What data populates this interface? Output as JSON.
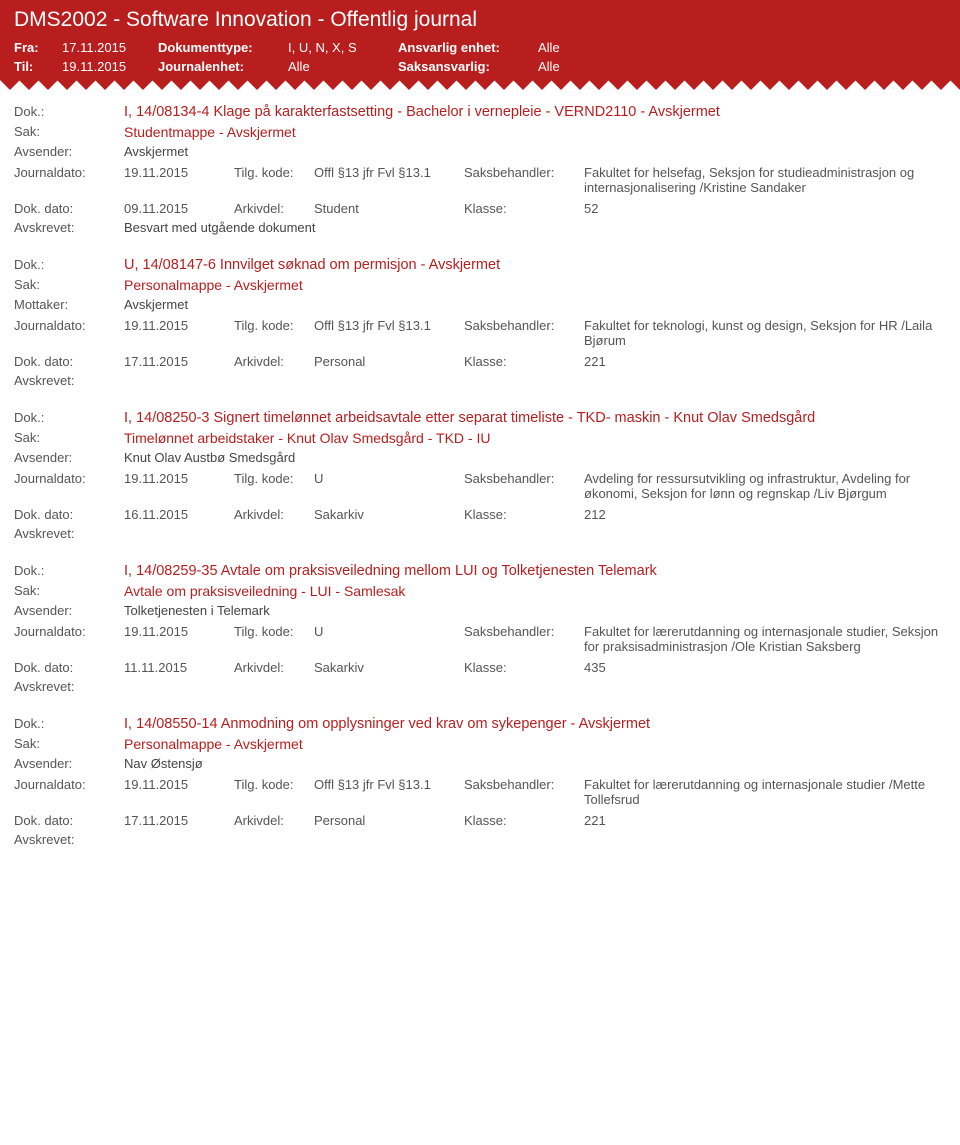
{
  "header": {
    "title": "DMS2002 - Software Innovation - Offentlig journal",
    "fra_label": "Fra:",
    "fra_value": "17.11.2015",
    "til_label": "Til:",
    "til_value": "19.11.2015",
    "doktype_label": "Dokumenttype:",
    "doktype_value": "I, U, N, X, S",
    "journalenhet_label": "Journalenhet:",
    "journalenhet_value": "Alle",
    "ansvarlig_label": "Ansvarlig enhet:",
    "ansvarlig_value": "Alle",
    "saksansvarlig_label": "Saksansvarlig:",
    "saksansvarlig_value": "Alle"
  },
  "labels": {
    "dok": "Dok.:",
    "sak": "Sak:",
    "avsender": "Avsender:",
    "mottaker": "Mottaker:",
    "journaldato": "Journaldato:",
    "tilgkode": "Tilg. kode:",
    "saksbehandler": "Saksbehandler:",
    "dokdato": "Dok. dato:",
    "arkivdel": "Arkivdel:",
    "klasse": "Klasse:",
    "avskrevet": "Avskrevet:"
  },
  "entries": [
    {
      "dok": "I, 14/08134-4 Klage på karakterfastsetting - Bachelor i vernepleie - VERND2110 - Avskjermet",
      "sak": "Studentmappe - Avskjermet",
      "party_label": "Avsender:",
      "party": "Avskjermet",
      "journaldato": "19.11.2015",
      "tilgkode": "Offl §13 jfr Fvl §13.1",
      "saksbehandler": "Fakultet for helsefag, Seksjon for studieadministrasjon og internasjonalisering /Kristine Sandaker",
      "dokdato": "09.11.2015",
      "arkivdel": "Student",
      "klasse": "52",
      "avskrevet": "Besvart med utgående dokument"
    },
    {
      "dok": "U, 14/08147-6 Innvilget søknad om permisjon - Avskjermet",
      "sak": "Personalmappe - Avskjermet",
      "party_label": "Mottaker:",
      "party": "Avskjermet",
      "journaldato": "19.11.2015",
      "tilgkode": "Offl §13 jfr Fvl §13.1",
      "saksbehandler": "Fakultet for teknologi, kunst og design, Seksjon for HR /Laila Bjørum",
      "dokdato": "17.11.2015",
      "arkivdel": "Personal",
      "klasse": "221",
      "avskrevet": ""
    },
    {
      "dok": "I, 14/08250-3 Signert timelønnet arbeidsavtale etter separat timeliste - TKD- maskin - Knut Olav Smedsgård",
      "sak": "Timelønnet arbeidstaker - Knut Olav Smedsgård - TKD - IU",
      "party_label": "Avsender:",
      "party": "Knut Olav Austbø Smedsgård",
      "journaldato": "19.11.2015",
      "tilgkode": "U",
      "saksbehandler": "Avdeling for ressursutvikling og infrastruktur, Avdeling for økonomi, Seksjon for lønn og regnskap /Liv Bjørgum",
      "dokdato": "16.11.2015",
      "arkivdel": "Sakarkiv",
      "klasse": "212",
      "avskrevet": ""
    },
    {
      "dok": "I, 14/08259-35 Avtale om praksisveiledning mellom LUI og Tolketjenesten Telemark",
      "sak": "Avtale om praksisveiledning - LUI - Samlesak",
      "party_label": "Avsender:",
      "party": "Tolketjenesten i Telemark",
      "journaldato": "19.11.2015",
      "tilgkode": "U",
      "saksbehandler": "Fakultet for lærerutdanning og internasjonale studier, Seksjon for praksisadministrasjon /Ole Kristian Saksberg",
      "dokdato": "11.11.2015",
      "arkivdel": "Sakarkiv",
      "klasse": "435",
      "avskrevet": ""
    },
    {
      "dok": "I, 14/08550-14 Anmodning om opplysninger ved krav om sykepenger - Avskjermet",
      "sak": "Personalmappe - Avskjermet",
      "party_label": "Avsender:",
      "party": "Nav Østensjø",
      "journaldato": "19.11.2015",
      "tilgkode": "Offl §13 jfr Fvl §13.1",
      "saksbehandler": "Fakultet for lærerutdanning og internasjonale studier /Mette Tollefsrud",
      "dokdato": "17.11.2015",
      "arkivdel": "Personal",
      "klasse": "221",
      "avskrevet": ""
    }
  ]
}
